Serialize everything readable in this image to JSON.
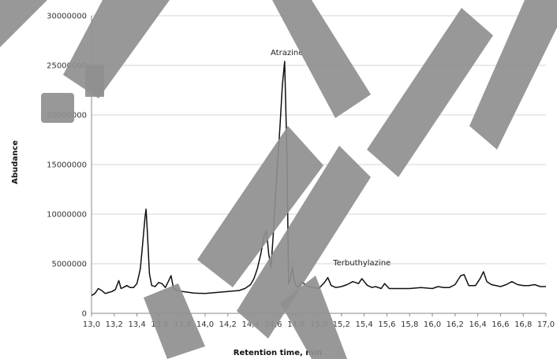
{
  "chart_data": {
    "type": "line",
    "title": "",
    "xlabel": "Retention time, min",
    "ylabel": "Abudance",
    "xlim": [
      13.0,
      17.0
    ],
    "ylim": [
      0,
      30000000
    ],
    "x_ticks": [
      "13,0",
      "13,2",
      "13,4",
      "13,6",
      "13,8",
      "14,0",
      "14,2",
      "14,4",
      "14,6",
      "14,8",
      "15,0",
      "15,2",
      "15,4",
      "15,6",
      "15,8",
      "16,0",
      "16,2",
      "16,4",
      "16,6",
      "16,8",
      "17,0"
    ],
    "y_ticks": [
      "0",
      "5000000",
      "10000000",
      "15000000",
      "20000000",
      "25000000",
      "30000000"
    ],
    "grid": true,
    "legend": "none",
    "annotations": [
      {
        "text": "Atrazine",
        "x": 14.72,
        "y": 25400000
      },
      {
        "text": "Terbuthylazine",
        "x": 15.38,
        "y": 4200000
      }
    ],
    "series": [
      {
        "x": [
          13.0,
          13.03,
          13.06,
          13.09,
          13.12,
          13.15,
          13.18,
          13.21,
          13.24,
          13.26,
          13.28,
          13.31,
          13.34,
          13.37,
          13.4,
          13.43,
          13.45,
          13.47,
          13.48,
          13.49,
          13.51,
          13.53,
          13.56,
          13.59,
          13.62,
          13.65,
          13.68,
          13.7,
          13.72,
          13.75,
          13.8,
          13.9,
          14.0,
          14.1,
          14.2,
          14.3,
          14.35,
          14.4,
          14.43,
          14.46,
          14.49,
          14.52,
          14.54,
          14.56,
          14.58,
          14.6,
          14.62,
          14.64,
          14.66,
          14.68,
          14.7,
          14.72,
          14.735,
          14.75,
          14.77,
          14.78,
          14.8,
          14.82,
          14.85,
          14.9,
          14.95,
          15.0,
          15.05,
          15.08,
          15.11,
          15.15,
          15.2,
          15.25,
          15.3,
          15.35,
          15.38,
          15.4,
          15.43,
          15.47,
          15.5,
          15.55,
          15.58,
          15.62,
          15.7,
          15.8,
          15.9,
          16.0,
          16.05,
          16.1,
          16.15,
          16.2,
          16.25,
          16.28,
          16.32,
          16.38,
          16.42,
          16.45,
          16.48,
          16.52,
          16.6,
          16.65,
          16.7,
          16.75,
          16.8,
          16.85,
          16.9,
          16.95,
          17.0
        ],
        "y": [
          1800000,
          2000000,
          2500000,
          2300000,
          2000000,
          2100000,
          2200000,
          2400000,
          3300000,
          2500000,
          2600000,
          2800000,
          2600000,
          2600000,
          3000000,
          4500000,
          7000000,
          9600000,
          10500000,
          8500000,
          4000000,
          2800000,
          2700000,
          3100000,
          3000000,
          2600000,
          3300000,
          3800000,
          2600000,
          2300000,
          2200000,
          2050000,
          2000000,
          2100000,
          2200000,
          2300000,
          2500000,
          2900000,
          3500000,
          4500000,
          6000000,
          7800000,
          8300000,
          6000000,
          4600000,
          8000000,
          12000000,
          15500000,
          19000000,
          23000000,
          25400000,
          16000000,
          3000000,
          3500000,
          4700000,
          3500000,
          2800000,
          2600000,
          3200000,
          2700000,
          2600000,
          2500000,
          3100000,
          3600000,
          2800000,
          2600000,
          2700000,
          2900000,
          3200000,
          3000000,
          3500000,
          3200000,
          2800000,
          2600000,
          2700000,
          2500000,
          3000000,
          2500000,
          2500000,
          2500000,
          2600000,
          2500000,
          2700000,
          2600000,
          2600000,
          2900000,
          3800000,
          3900000,
          2800000,
          2800000,
          3500000,
          4200000,
          3200000,
          2900000,
          2700000,
          2900000,
          3200000,
          2900000,
          2800000,
          2800000,
          2900000,
          2700000,
          2700000
        ]
      }
    ]
  }
}
